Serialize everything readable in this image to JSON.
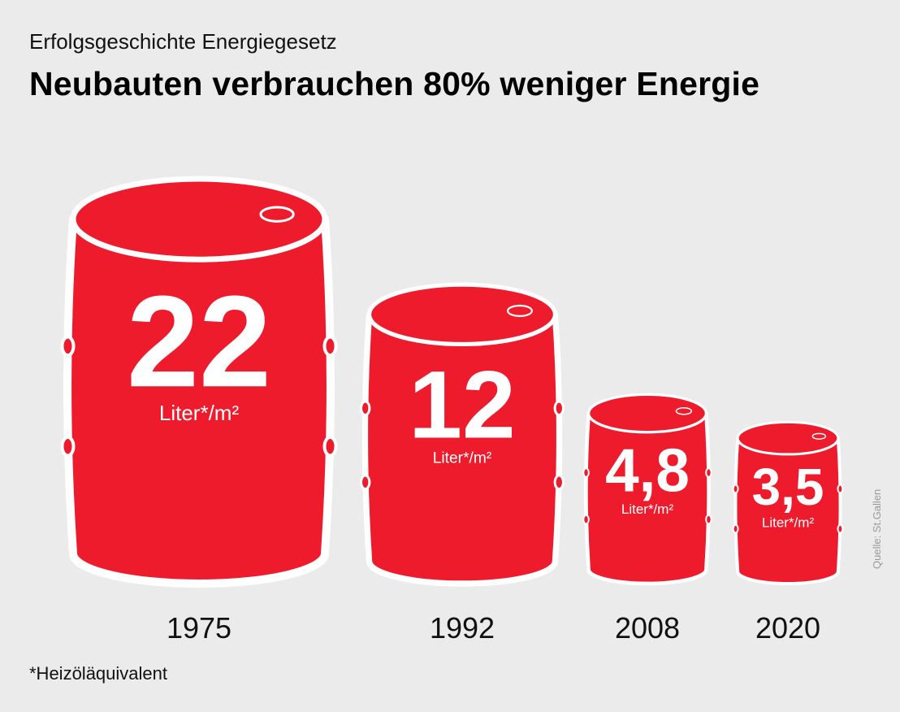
{
  "header": {
    "kicker": "Erfolgsgeschichte Energiegesetz",
    "title": "Neubauten verbrauchen 80% weniger Energie"
  },
  "chart_data": {
    "type": "bar",
    "categories": [
      "1975",
      "1992",
      "2008",
      "2020"
    ],
    "values": [
      22,
      12,
      4.8,
      3.5
    ],
    "value_labels": [
      "22",
      "12",
      "4,8",
      "3,5"
    ],
    "unit_label": "Liter*/m²",
    "ylabel": "",
    "xlabel": "",
    "bar_color": "#ee1b2d",
    "outline_color": "#ffffff"
  },
  "footnote": "*Heizöläquivalent",
  "source": "Quelle: St.Gallen"
}
